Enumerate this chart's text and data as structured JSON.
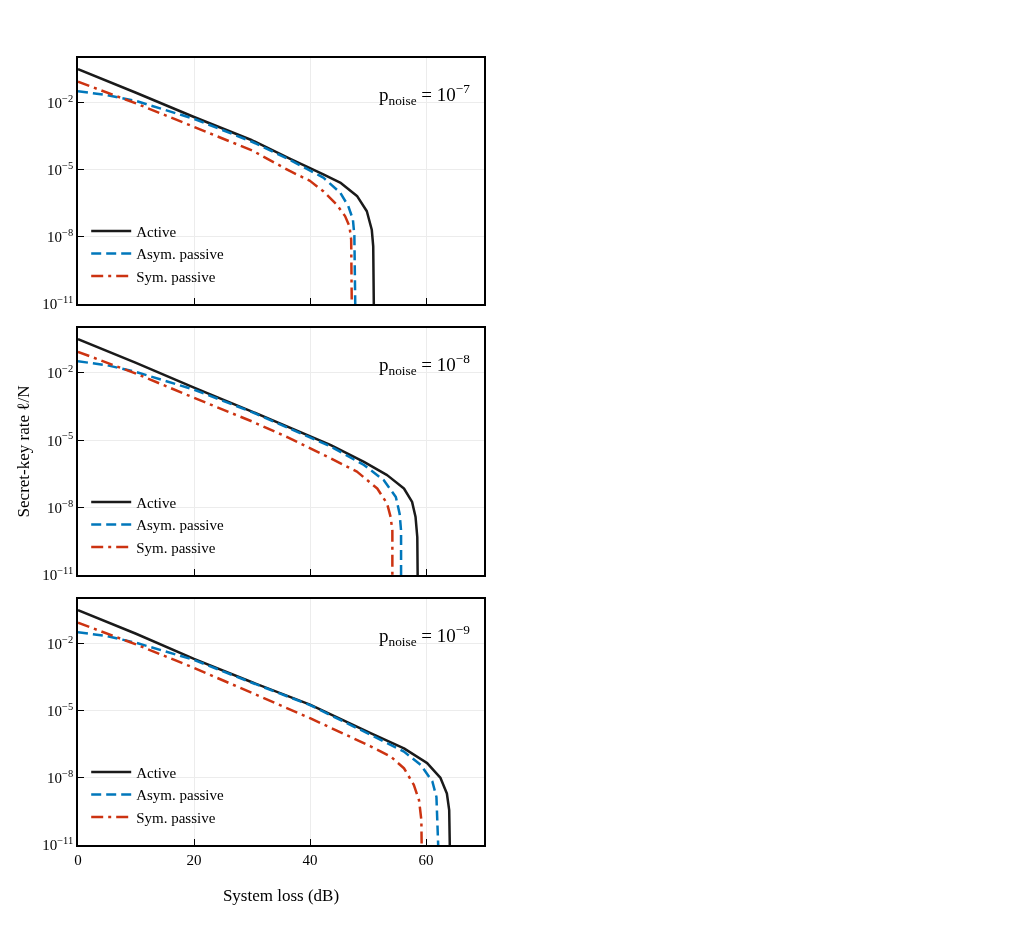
{
  "chart_data": [
    {
      "type": "line",
      "annotations": [
        "p$_{noise}$ = 10$^{−7}$"
      ],
      "series": [
        {
          "name": "Active",
          "color": "#1a1a1a",
          "line_style": "solid",
          "x": [
            0,
            10,
            20,
            30,
            36.5,
            42.3,
            45.2,
            48.1,
            49.8,
            50.65,
            50.9,
            51.0
          ],
          "values": [
            0.32,
            0.028,
            0.0023,
            0.00021,
            3.2e-05,
            6.3e-06,
            2.7e-06,
            6.8e-07,
            1.4e-07,
            2.1e-08,
            3.8e-09,
            1e-11
          ]
        },
        {
          "name": "Asym. passive",
          "color": "#0077bb",
          "line_style": "dashed",
          "x": [
            0,
            5,
            10,
            20,
            30,
            36.5,
            42.3,
            45.2,
            46.6,
            47.4,
            47.65,
            47.8
          ],
          "values": [
            0.033,
            0.022,
            0.012,
            0.0019,
            0.00018,
            2.8e-05,
            4.5e-06,
            9.5e-07,
            2.4e-07,
            6e-08,
            1.1e-08,
            1e-11
          ]
        },
        {
          "name": "Sym. passive",
          "color": "#cc3311",
          "line_style": "dashdot",
          "x": [
            0,
            10,
            20,
            30,
            36.5,
            40,
            42.3,
            44.6,
            46.05,
            46.8,
            47.1,
            47.2
          ],
          "values": [
            0.087,
            0.0093,
            0.00083,
            7.4e-05,
            8.9e-06,
            3.2e-06,
            1.1e-06,
            2.8e-07,
            8.5e-08,
            3e-08,
            7.6e-09,
            1e-11
          ]
        }
      ],
      "xlim": [
        0,
        70
      ],
      "xticks": [
        0,
        20,
        40,
        60
      ],
      "ylim": [
        1e-11,
        1
      ],
      "yticks": [
        {
          "value": 1e-11,
          "label": "10$^{−11}$"
        },
        {
          "value": 1e-08,
          "label": "10$^{−8}$"
        },
        {
          "value": 1e-05,
          "label": "10$^{−5}$"
        },
        {
          "value": 0.01,
          "label": "10$^{−2}$"
        }
      ],
      "log": "y",
      "grid": true,
      "legend": "bottom left",
      "tick_labels": "y"
    },
    {
      "type": "line",
      "ylabel": "Secret-key rate ℓ/N",
      "annotations": [
        "p$_{noise}$ = 10$^{−8}$"
      ],
      "series": [
        {
          "name": "Active",
          "color": "#1a1a1a",
          "line_style": "solid",
          "x": [
            0,
            10,
            20,
            30,
            43.5,
            49.3,
            53.3,
            56.2,
            57.6,
            58.2,
            58.5,
            58.56
          ],
          "values": [
            0.32,
            0.028,
            0.0022,
            0.00019,
            6.3e-06,
            1.1e-06,
            2.8e-07,
            7.1e-08,
            1.8e-08,
            3.8e-09,
            4.8e-10,
            1e-11
          ]
        },
        {
          "name": "Asym. passive",
          "color": "#0077bb",
          "line_style": "dashed",
          "x": [
            0,
            5,
            10,
            20,
            30,
            43.5,
            49.3,
            52.7,
            54.8,
            55.45,
            55.7,
            55.7
          ],
          "values": [
            0.033,
            0.022,
            0.011,
            0.0018,
            0.00018,
            5.4e-06,
            7.9e-07,
            1.7e-07,
            3e-08,
            5.4e-09,
            9.5e-10,
            1e-11
          ]
        },
        {
          "name": "Sym. passive",
          "color": "#cc3311",
          "line_style": "dashdot",
          "x": [
            0,
            10,
            20,
            30,
            36,
            43.5,
            48.1,
            51.6,
            53.3,
            53.9,
            54.2,
            54.2
          ],
          "values": [
            0.087,
            0.0093,
            0.00078,
            6.9e-05,
            1.4e-05,
            1.6e-06,
            4e-07,
            7.1e-08,
            1.5e-08,
            3.8e-09,
            9.5e-10,
            1e-11
          ]
        }
      ],
      "xlim": [
        0,
        70
      ],
      "xticks": [
        0,
        20,
        40,
        60
      ],
      "ylim": [
        1e-11,
        1
      ],
      "yticks": [
        {
          "value": 1e-11,
          "label": "10$^{−11}$"
        },
        {
          "value": 1e-08,
          "label": "10$^{−8}$"
        },
        {
          "value": 1e-05,
          "label": "10$^{−5}$"
        },
        {
          "value": 0.01,
          "label": "10$^{−2}$"
        }
      ],
      "log": "y",
      "grid": true,
      "legend": "bottom left",
      "tick_labels": "y"
    },
    {
      "type": "line",
      "xlabel": "System loss (dB)",
      "annotations": [
        "p$_{noise}$ = 10$^{−9}$"
      ],
      "series": [
        {
          "name": "Active",
          "color": "#1a1a1a",
          "line_style": "solid",
          "x": [
            0,
            10,
            20,
            30,
            40,
            50.44,
            56.2,
            60.2,
            62.5,
            63.6,
            64.0,
            64.1
          ],
          "values": [
            0.32,
            0.028,
            0.0021,
            0.00019,
            1.9e-05,
            1e-06,
            2.1e-07,
            4.6e-08,
            1e-08,
            2e-09,
            3.6e-10,
            1e-11
          ]
        },
        {
          "name": "Asym. passive",
          "color": "#0077bb",
          "line_style": "dashed",
          "x": [
            0,
            5,
            10,
            20,
            30,
            40,
            50.44,
            56.2,
            59.1,
            61.1,
            61.8,
            62.1
          ],
          "values": [
            0.033,
            0.022,
            0.011,
            0.0019,
            0.00018,
            1.8e-05,
            8.5e-07,
            1.5e-07,
            3.8e-08,
            6.9e-09,
            1.4e-09,
            1e-11
          ]
        },
        {
          "name": "Sym. passive",
          "color": "#cc3311",
          "line_style": "dashdot",
          "x": [
            0,
            10,
            20,
            30,
            40,
            50.44,
            53.9,
            56.2,
            57.9,
            58.8,
            59.2,
            59.25
          ],
          "values": [
            0.087,
            0.0093,
            0.00083,
            6.3e-05,
            4.7e-06,
            2.6e-07,
            9.1e-08,
            2.7e-08,
            4.9e-09,
            1e-09,
            1.3e-10,
            1e-11
          ]
        }
      ],
      "xlim": [
        0,
        70
      ],
      "xticks": [
        0,
        20,
        40,
        60
      ],
      "ylim": [
        1e-11,
        1
      ],
      "yticks": [
        {
          "value": 1e-11,
          "label": "10$^{−11}$"
        },
        {
          "value": 1e-08,
          "label": "10$^{−8}$"
        },
        {
          "value": 1e-05,
          "label": "10$^{−5}$"
        },
        {
          "value": 0.01,
          "label": "10$^{−2}$"
        }
      ],
      "log": "y",
      "grid": true,
      "legend": "bottom left"
    }
  ]
}
